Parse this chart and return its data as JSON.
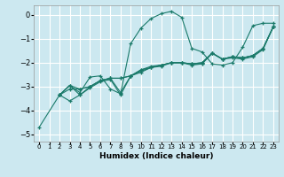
{
  "xlabel": "Humidex (Indice chaleur)",
  "ylabel": "",
  "bg_color": "#cce8f0",
  "grid_color": "#ffffff",
  "line_color": "#1a7a6a",
  "xlim": [
    -0.5,
    23.5
  ],
  "ylim": [
    -5.3,
    0.4
  ],
  "yticks": [
    0,
    -1,
    -2,
    -3,
    -4,
    -5
  ],
  "xticks": [
    0,
    1,
    2,
    3,
    4,
    5,
    6,
    7,
    8,
    9,
    10,
    11,
    12,
    13,
    14,
    15,
    16,
    17,
    18,
    19,
    20,
    21,
    22,
    23
  ],
  "lines": [
    {
      "x": [
        0,
        2,
        3,
        4,
        5,
        6,
        7,
        8,
        9,
        10,
        11,
        12,
        13,
        14,
        15,
        16,
        17,
        18,
        19,
        20,
        21,
        22,
        23
      ],
      "y": [
        -4.7,
        -3.35,
        -2.95,
        -3.25,
        -2.6,
        -2.55,
        -3.1,
        -3.3,
        -1.2,
        -0.55,
        -0.15,
        0.05,
        0.15,
        -0.1,
        -1.4,
        -1.55,
        -2.05,
        -2.1,
        -2.0,
        -1.35,
        -0.45,
        -0.35,
        -0.35
      ]
    },
    {
      "x": [
        2,
        3,
        4,
        5,
        6,
        7,
        8,
        9,
        10,
        11,
        12,
        13,
        14,
        15,
        16,
        17,
        18,
        19,
        20,
        21,
        22,
        23
      ],
      "y": [
        -3.35,
        -3.6,
        -3.35,
        -3.0,
        -2.75,
        -2.65,
        -3.25,
        -2.55,
        -2.3,
        -2.15,
        -2.1,
        -2.0,
        -2.0,
        -2.05,
        -2.05,
        -1.6,
        -1.85,
        -1.75,
        -1.8,
        -1.7,
        -1.4,
        -0.5
      ]
    },
    {
      "x": [
        2,
        3,
        4,
        5,
        6,
        7,
        8,
        9,
        10,
        11,
        12,
        13,
        14,
        15,
        16,
        17,
        18,
        19,
        20,
        21,
        22,
        23
      ],
      "y": [
        -3.35,
        -3.1,
        -3.1,
        -3.0,
        -2.75,
        -2.65,
        -2.65,
        -2.55,
        -2.3,
        -2.2,
        -2.1,
        -2.0,
        -2.0,
        -2.05,
        -2.0,
        -1.6,
        -1.85,
        -1.75,
        -1.8,
        -1.7,
        -1.4,
        -0.5
      ]
    },
    {
      "x": [
        2,
        3,
        4,
        5,
        6,
        7,
        8,
        9,
        10,
        11,
        12,
        13,
        14,
        15,
        16,
        17,
        18,
        19,
        20,
        21,
        22,
        23
      ],
      "y": [
        -3.35,
        -2.95,
        -3.1,
        -3.0,
        -2.75,
        -2.65,
        -2.65,
        -2.55,
        -2.4,
        -2.2,
        -2.1,
        -2.0,
        -2.0,
        -2.05,
        -2.0,
        -1.6,
        -1.85,
        -1.75,
        -1.8,
        -1.7,
        -1.4,
        -0.5
      ]
    },
    {
      "x": [
        2,
        3,
        4,
        5,
        6,
        7,
        8,
        9,
        10,
        11,
        12,
        13,
        14,
        15,
        16,
        17,
        18,
        19,
        20,
        21,
        22,
        23
      ],
      "y": [
        -3.35,
        -2.95,
        -3.35,
        -3.05,
        -2.8,
        -2.7,
        -3.35,
        -2.55,
        -2.35,
        -2.2,
        -2.15,
        -2.0,
        -2.0,
        -2.1,
        -2.05,
        -1.6,
        -1.85,
        -1.8,
        -1.85,
        -1.75,
        -1.45,
        -0.5
      ]
    }
  ]
}
